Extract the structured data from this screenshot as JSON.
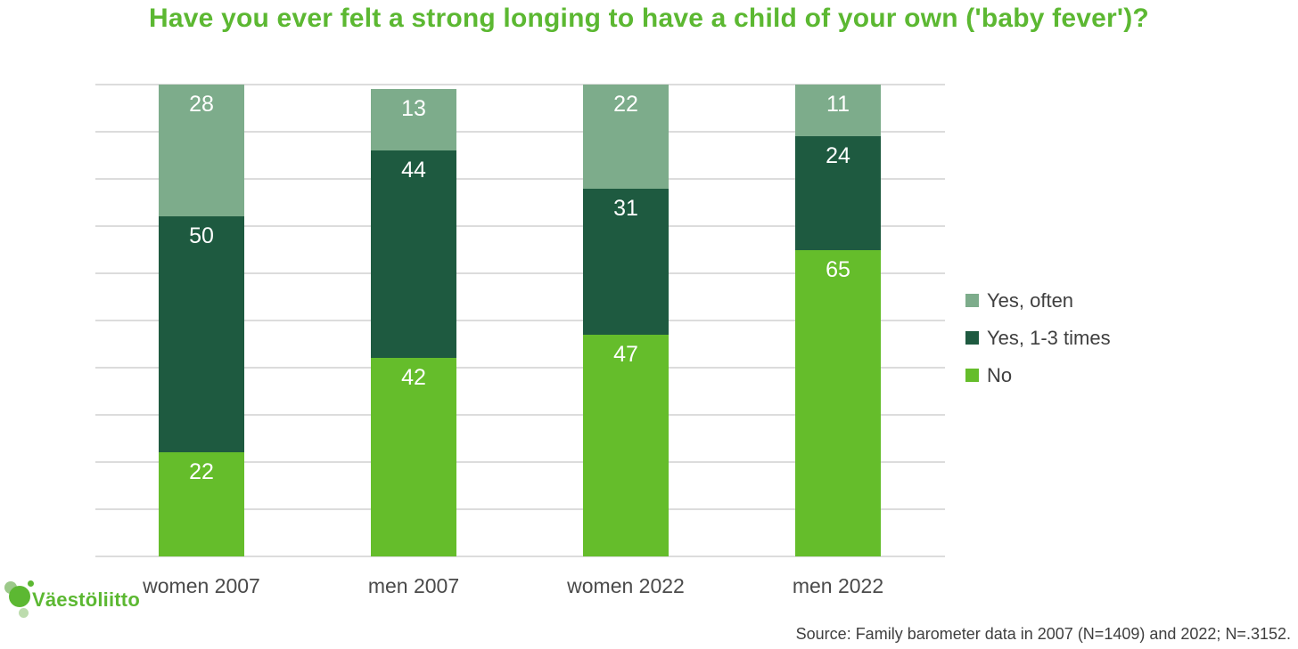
{
  "title": "Have you ever felt a strong longing to have a child of your own ('baby fever')?",
  "colors": {
    "title_green": "#5cb832",
    "bright_green": "#65bd2b",
    "dark_green": "#1e5a40",
    "sage_green": "#7dac8b",
    "gridline": "#dcdcdc",
    "axis_text": "#4a4a4a",
    "body_text": "#3f3f3f",
    "logo_pale_green": "#9cc98a",
    "logo_faint_green": "#bddcae"
  },
  "chart_data": {
    "type": "bar",
    "stacked": true,
    "orientation": "vertical",
    "categories": [
      "women 2007",
      "men 2007",
      "women 2022",
      "men 2022"
    ],
    "series": [
      {
        "name": "No",
        "color": "#65bd2b",
        "values": [
          22,
          42,
          47,
          65
        ]
      },
      {
        "name": "Yes, 1-3 times",
        "color": "#1e5a40",
        "values": [
          50,
          44,
          31,
          24
        ]
      },
      {
        "name": "Yes, often",
        "color": "#7dac8b",
        "values": [
          28,
          13,
          22,
          11
        ]
      }
    ],
    "unit": "%",
    "ylim": [
      0,
      100
    ],
    "grid": "horizontal",
    "gridline_count": 11,
    "legend_position": "right",
    "data_labels": "inside-top, white"
  },
  "legend": {
    "items": [
      {
        "label": "Yes, often",
        "color": "#7dac8b"
      },
      {
        "label": "Yes, 1-3 times",
        "color": "#1e5a40"
      },
      {
        "label": "No",
        "color": "#65bd2b"
      }
    ]
  },
  "logo": {
    "text": "Väestöliitto"
  },
  "source": "Source: Family barometer data in 2007 (N=1409) and 2022; N=.3152."
}
